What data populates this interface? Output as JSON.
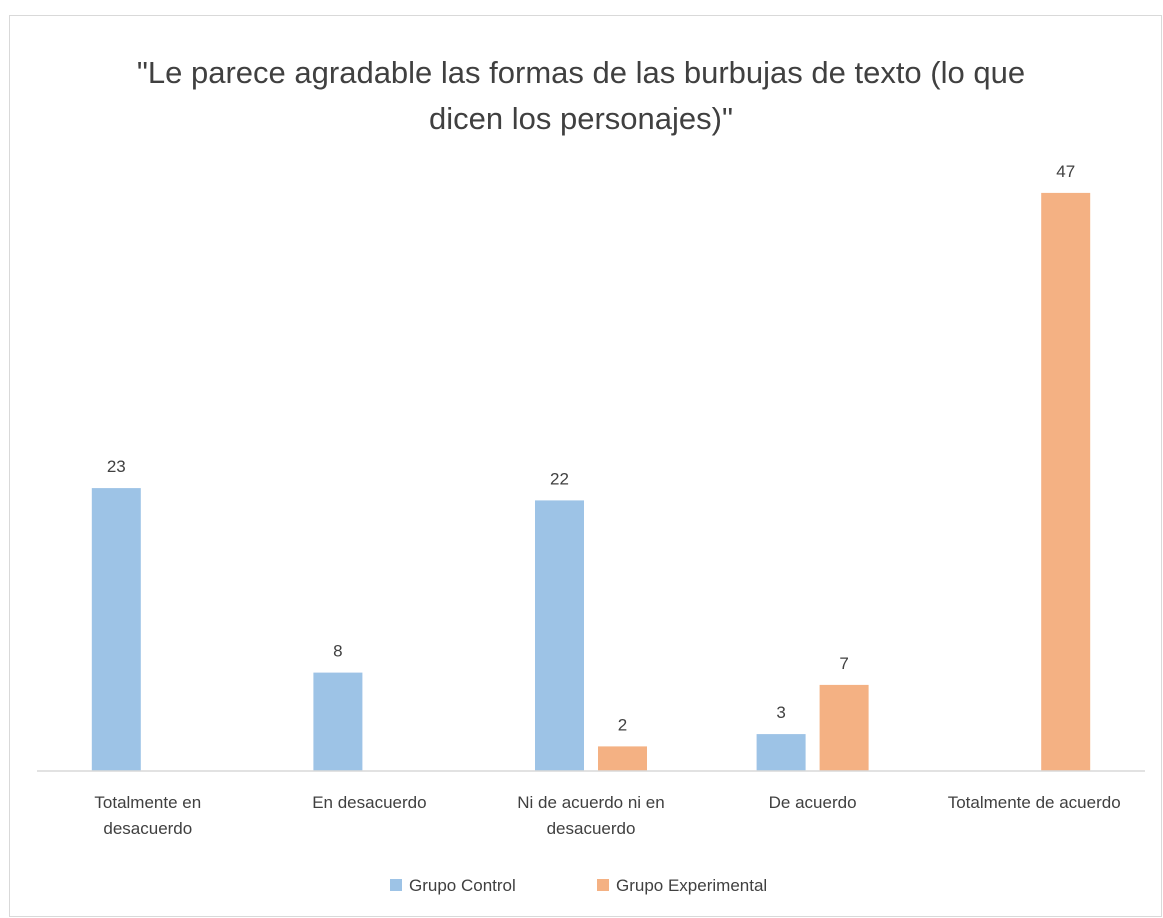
{
  "chart_data": {
    "type": "bar",
    "title": "\"Le parece agradable las formas de las burbujas de texto (lo que dicen los personajes)\"",
    "categories": [
      "Totalmente en desacuerdo",
      "En desacuerdo",
      "Ni de acuerdo ni  en desacuerdo",
      "De acuerdo",
      "Totalmente de acuerdo"
    ],
    "series": [
      {
        "name": "Grupo Control",
        "color": "#9dc3e6",
        "values": [
          23,
          8,
          22,
          3,
          null
        ]
      },
      {
        "name": "Grupo Experimental",
        "color": "#f4b183",
        "values": [
          null,
          null,
          2,
          7,
          47
        ]
      }
    ],
    "ylim": [
      0,
      50
    ],
    "legend": "bottom"
  }
}
